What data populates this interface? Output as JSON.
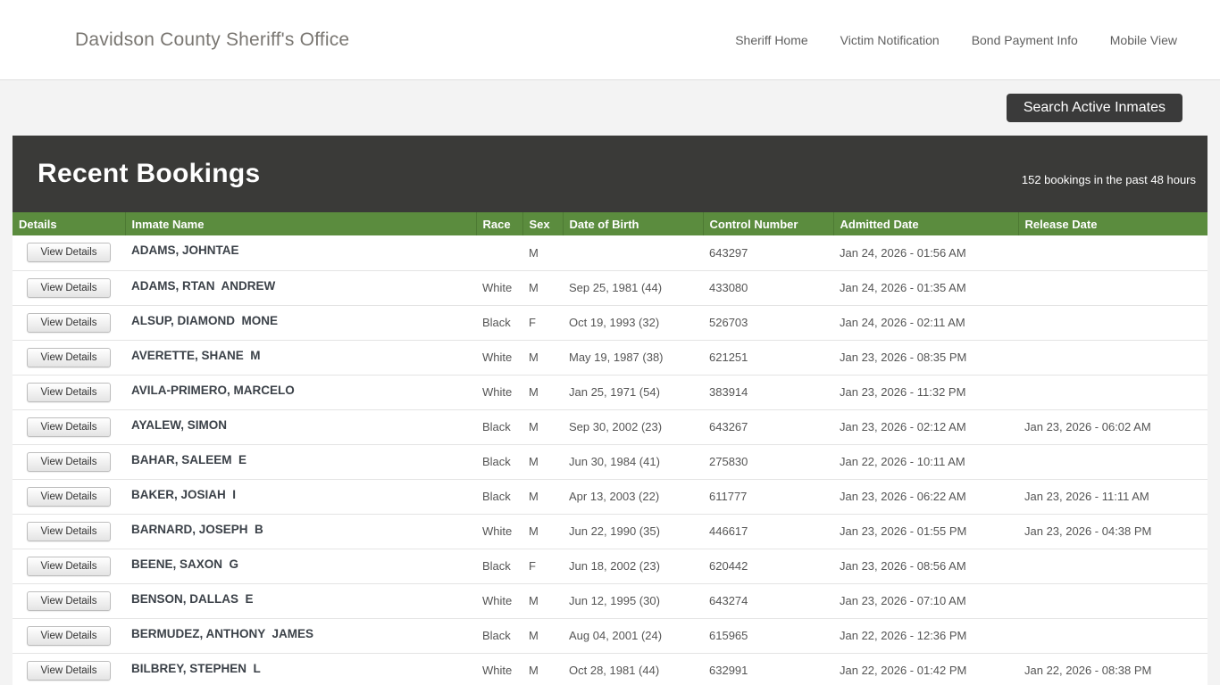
{
  "header": {
    "title": "Davidson County Sheriff's Office",
    "nav": [
      {
        "label": "Sheriff Home"
      },
      {
        "label": "Victim Notification"
      },
      {
        "label": "Bond Payment Info"
      },
      {
        "label": "Mobile View"
      }
    ]
  },
  "toolbar": {
    "search_button_label": "Search Active Inmates"
  },
  "bookings": {
    "title": "Recent Bookings",
    "subtitle": "152 bookings in the past 48 hours",
    "view_details_label": "View Details",
    "columns": [
      "Details",
      "Inmate Name",
      "Race",
      "Sex",
      "Date of Birth",
      "Control Number",
      "Admitted Date",
      "Release Date"
    ],
    "rows": [
      {
        "name": "ADAMS, JOHNTAE",
        "race": "",
        "sex": "M",
        "dob": "",
        "control": "643297",
        "admitted": "Jan 24, 2026 - 01:56 AM",
        "released": ""
      },
      {
        "name": "ADAMS, RTAN  ANDREW",
        "race": "White",
        "sex": "M",
        "dob": "Sep 25, 1981 (44)",
        "control": "433080",
        "admitted": "Jan 24, 2026 - 01:35 AM",
        "released": ""
      },
      {
        "name": "ALSUP, DIAMOND  MONE",
        "race": "Black",
        "sex": "F",
        "dob": "Oct 19, 1993 (32)",
        "control": "526703",
        "admitted": "Jan 24, 2026 - 02:11 AM",
        "released": ""
      },
      {
        "name": "AVERETTE, SHANE  M",
        "race": "White",
        "sex": "M",
        "dob": "May 19, 1987 (38)",
        "control": "621251",
        "admitted": "Jan 23, 2026 - 08:35 PM",
        "released": ""
      },
      {
        "name": "AVILA-PRIMERO, MARCELO",
        "race": "White",
        "sex": "M",
        "dob": "Jan 25, 1971 (54)",
        "control": "383914",
        "admitted": "Jan 23, 2026 - 11:32 PM",
        "released": ""
      },
      {
        "name": "AYALEW, SIMON",
        "race": "Black",
        "sex": "M",
        "dob": "Sep 30, 2002 (23)",
        "control": "643267",
        "admitted": "Jan 23, 2026 - 02:12 AM",
        "released": "Jan 23, 2026 - 06:02 AM"
      },
      {
        "name": "BAHAR, SALEEM  E",
        "race": "Black",
        "sex": "M",
        "dob": "Jun 30, 1984 (41)",
        "control": "275830",
        "admitted": "Jan 22, 2026 - 10:11 AM",
        "released": ""
      },
      {
        "name": "BAKER, JOSIAH  I",
        "race": "Black",
        "sex": "M",
        "dob": "Apr 13, 2003 (22)",
        "control": "611777",
        "admitted": "Jan 23, 2026 - 06:22 AM",
        "released": "Jan 23, 2026 - 11:11 AM"
      },
      {
        "name": "BARNARD, JOSEPH  B",
        "race": "White",
        "sex": "M",
        "dob": "Jun 22, 1990 (35)",
        "control": "446617",
        "admitted": "Jan 23, 2026 - 01:55 PM",
        "released": "Jan 23, 2026 - 04:38 PM"
      },
      {
        "name": "BEENE, SAXON  G",
        "race": "Black",
        "sex": "F",
        "dob": "Jun 18, 2002 (23)",
        "control": "620442",
        "admitted": "Jan 23, 2026 - 08:56 AM",
        "released": ""
      },
      {
        "name": "BENSON, DALLAS  E",
        "race": "White",
        "sex": "M",
        "dob": "Jun 12, 1995 (30)",
        "control": "643274",
        "admitted": "Jan 23, 2026 - 07:10 AM",
        "released": ""
      },
      {
        "name": "BERMUDEZ, ANTHONY  JAMES",
        "race": "Black",
        "sex": "M",
        "dob": "Aug 04, 2001 (24)",
        "control": "615965",
        "admitted": "Jan 22, 2026 - 12:36 PM",
        "released": ""
      },
      {
        "name": "BILBREY, STEPHEN  L",
        "race": "White",
        "sex": "M",
        "dob": "Oct 28, 1981 (44)",
        "control": "632991",
        "admitted": "Jan 22, 2026 - 01:42 PM",
        "released": "Jan 22, 2026 - 08:38 PM"
      }
    ]
  },
  "colors": {
    "table_header_green": "#5b8c3e",
    "panel_header_dark": "#3a3a38",
    "search_button_dark": "#3a3a3a",
    "page_background": "#f3f3f3"
  }
}
